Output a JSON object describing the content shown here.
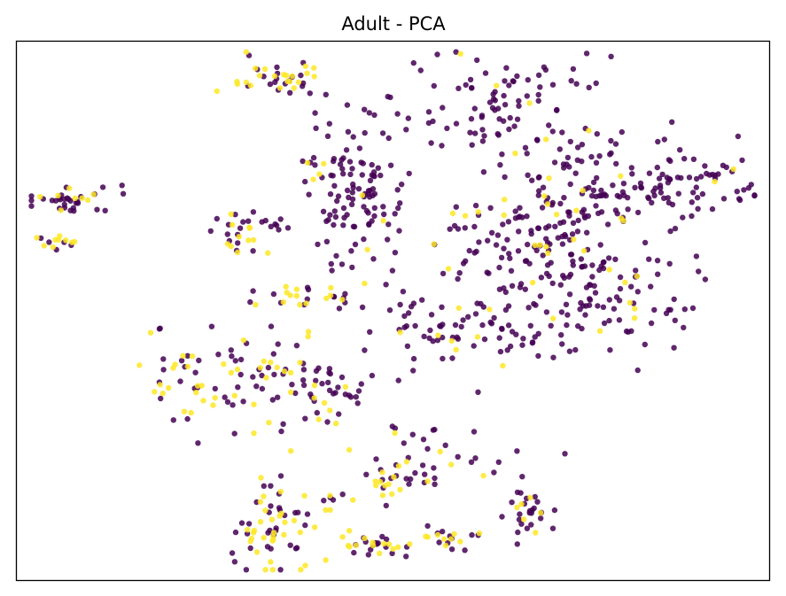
{
  "chart_data": {
    "type": "scatter",
    "title": "Adult - PCA",
    "xlabel": "",
    "ylabel": "",
    "axes_ticks": "none",
    "grid": false,
    "legend": "none",
    "xlim": [
      0,
      100
    ],
    "ylim": [
      0,
      100
    ],
    "colors": {
      "class_0": "#440154",
      "class_1": "#fde725"
    },
    "clusters": [
      {
        "c": [
          6.5,
          70.6
        ],
        "s": [
          3.0,
          1.1
        ],
        "n": 38,
        "f": 0.18,
        "seed": 1
      },
      {
        "c": [
          6.0,
          62.8
        ],
        "s": [
          1.6,
          0.9
        ],
        "n": 14,
        "f": 0.55,
        "seed": 2
      },
      {
        "c": [
          35.2,
          92.6
        ],
        "s": [
          3.2,
          2.2
        ],
        "n": 42,
        "f": 0.45,
        "seed": 3
      },
      {
        "c": [
          44.5,
          73.5
        ],
        "s": [
          3.2,
          7.0
        ],
        "n": 115,
        "f": 0.05,
        "seed": 4
      },
      {
        "c": [
          29.3,
          64.5
        ],
        "s": [
          1.9,
          2.2
        ],
        "n": 26,
        "f": 0.42,
        "seed": 5
      },
      {
        "c": [
          34.2,
          66.0
        ],
        "s": [
          1.0,
          0.7
        ],
        "n": 7,
        "f": 0.0,
        "seed": 6
      },
      {
        "c": [
          40.0,
          52.5
        ],
        "s": [
          4.0,
          1.0
        ],
        "n": 26,
        "f": 0.45,
        "seed": 7
      },
      {
        "c": [
          29.0,
          37.0
        ],
        "s": [
          6.0,
          5.0
        ],
        "n": 95,
        "f": 0.42,
        "seed": 8
      },
      {
        "c": [
          41.0,
          35.0
        ],
        "s": [
          2.8,
          2.5
        ],
        "n": 35,
        "f": 0.22,
        "seed": 9
      },
      {
        "c": [
          56.5,
          46.0
        ],
        "s": [
          6.0,
          4.0
        ],
        "n": 65,
        "f": 0.12,
        "seed": 10
      },
      {
        "c": [
          64.5,
          88.0
        ],
        "s": [
          6.5,
          5.5
        ],
        "n": 95,
        "f": 0.06,
        "seed": 11
      },
      {
        "c": [
          66.0,
          63.0
        ],
        "s": [
          6.5,
          6.5
        ],
        "n": 130,
        "f": 0.14,
        "seed": 12
      },
      {
        "c": [
          76.0,
          73.5
        ],
        "s": [
          4.0,
          5.5
        ],
        "n": 55,
        "f": 0.16,
        "seed": 13
      },
      {
        "c": [
          86.0,
          74.0
        ],
        "s": [
          7.0,
          3.5
        ],
        "n": 90,
        "f": 0.08,
        "seed": 14
      },
      {
        "c": [
          76.0,
          52.0
        ],
        "s": [
          8.0,
          5.0
        ],
        "n": 115,
        "f": 0.05,
        "seed": 15
      },
      {
        "c": [
          58.0,
          24.0
        ],
        "s": [
          5.5,
          3.5
        ],
        "n": 35,
        "f": 0.15,
        "seed": 16
      },
      {
        "c": [
          49.5,
          19.0
        ],
        "s": [
          2.0,
          1.5
        ],
        "n": 20,
        "f": 0.6,
        "seed": 17
      },
      {
        "c": [
          34.5,
          10.0
        ],
        "s": [
          2.8,
          4.5
        ],
        "n": 65,
        "f": 0.5,
        "seed": 18
      },
      {
        "c": [
          42.5,
          15.0
        ],
        "s": [
          1.0,
          1.0
        ],
        "n": 8,
        "f": 0.35,
        "seed": 19
      },
      {
        "c": [
          47.5,
          6.5
        ],
        "s": [
          2.5,
          1.0
        ],
        "n": 28,
        "f": 0.4,
        "seed": 20
      },
      {
        "c": [
          57.0,
          7.5
        ],
        "s": [
          2.5,
          1.2
        ],
        "n": 22,
        "f": 0.5,
        "seed": 21
      },
      {
        "c": [
          67.5,
          12.5
        ],
        "s": [
          1.5,
          2.5
        ],
        "n": 30,
        "f": 0.25,
        "seed": 22
      }
    ]
  }
}
